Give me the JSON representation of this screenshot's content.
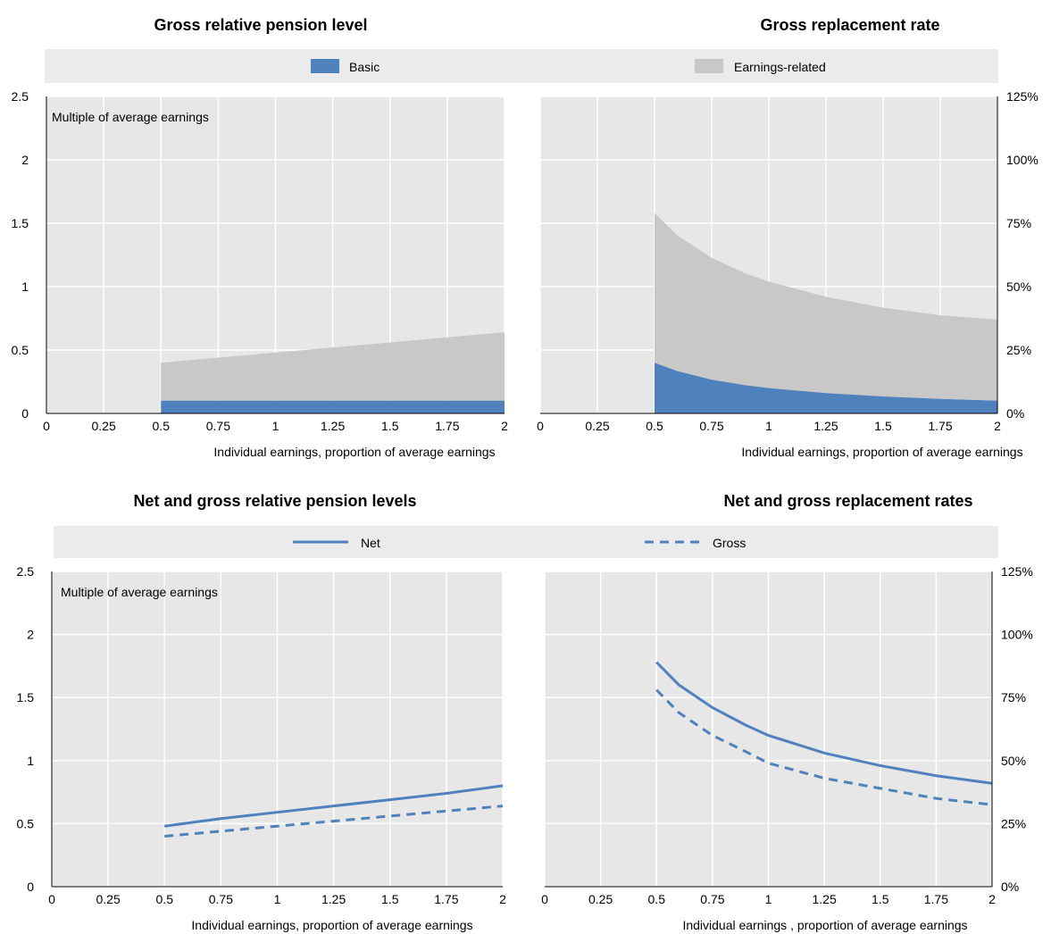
{
  "titles": {
    "top_left": "Gross relative pension level",
    "top_right": "Gross replacement rate",
    "bottom_left": "Net and gross relative pension levels",
    "bottom_right": "Net and gross replacement rates"
  },
  "legends": {
    "top": [
      {
        "label": "Basic",
        "color": "#4f81bd",
        "kind": "box"
      },
      {
        "label": "Earnings-related",
        "color": "#c8c8c8",
        "kind": "box"
      }
    ],
    "bottom": [
      {
        "label": "Net",
        "color": "#4f81bd",
        "kind": "solid"
      },
      {
        "label": "Gross",
        "color": "#4f81bd",
        "kind": "dashed"
      }
    ]
  },
  "colors": {
    "plot_bg": "#e7e7e7",
    "legend_bg": "#ebebeb",
    "grid": "#ffffff",
    "basic": "#4f81bd",
    "earnings_related": "#c8c8c8",
    "line": "#4f81bd"
  },
  "chart_data": [
    {
      "id": "top_left",
      "type": "area",
      "title": "Gross relative pension level",
      "annotation": "Multiple of average earnings",
      "xlabel": "Individual earnings, proportion of average earnings",
      "x_ticks": [
        "0",
        "0.25",
        "0.5",
        "0.75",
        "1",
        "1.25",
        "1.5",
        "1.75",
        "2"
      ],
      "y_ticks": [
        "0",
        "0.5",
        "1",
        "1.5",
        "2",
        "2.5"
      ],
      "xlim": [
        0,
        2
      ],
      "ylim": [
        0,
        2.5
      ],
      "grid": true,
      "x": [
        0.5,
        0.75,
        1,
        1.25,
        1.5,
        1.75,
        2
      ],
      "series": [
        {
          "name": "Basic",
          "values": [
            0.1,
            0.1,
            0.1,
            0.1,
            0.1,
            0.1,
            0.1
          ]
        },
        {
          "name": "Earnings-related",
          "values": [
            0.3,
            0.34,
            0.38,
            0.42,
            0.46,
            0.5,
            0.54
          ]
        }
      ]
    },
    {
      "id": "top_right",
      "type": "area",
      "title": "Gross replacement rate",
      "xlabel": "Individual earnings, proportion of average earnings",
      "x_ticks": [
        "0",
        "0.25",
        "0.5",
        "0.75",
        "1",
        "1.25",
        "1.5",
        "1.75",
        "2"
      ],
      "y_ticks": [
        "0%",
        "25%",
        "50%",
        "75%",
        "100%",
        "125%"
      ],
      "xlim": [
        0,
        2
      ],
      "ylim": [
        0,
        125
      ],
      "grid": true,
      "x": [
        0.5,
        0.6,
        0.75,
        0.9,
        1,
        1.25,
        1.5,
        1.75,
        2
      ],
      "series": [
        {
          "name": "Basic",
          "values": [
            20,
            16.7,
            13.3,
            11.1,
            10,
            8,
            6.7,
            5.7,
            5
          ]
        },
        {
          "name": "Earnings-related",
          "values": [
            59,
            53.5,
            48,
            44,
            42,
            38,
            35,
            33,
            32
          ]
        }
      ]
    },
    {
      "id": "bottom_left",
      "type": "line",
      "title": "Net and gross relative pension levels",
      "annotation": "Multiple of average earnings",
      "xlabel": "Individual earnings, proportion of average earnings",
      "x_ticks": [
        "0",
        "0.25",
        "0.5",
        "0.75",
        "1",
        "1.25",
        "1.5",
        "1.75",
        "2"
      ],
      "y_ticks": [
        "0",
        "0.5",
        "1",
        "1.5",
        "2",
        "2.5"
      ],
      "xlim": [
        0,
        2
      ],
      "ylim": [
        0,
        2.5
      ],
      "grid": true,
      "x": [
        0.5,
        0.75,
        1,
        1.25,
        1.5,
        1.75,
        2
      ],
      "series": [
        {
          "name": "Net",
          "values": [
            0.48,
            0.54,
            0.59,
            0.64,
            0.69,
            0.74,
            0.8
          ]
        },
        {
          "name": "Gross",
          "values": [
            0.4,
            0.44,
            0.48,
            0.52,
            0.56,
            0.6,
            0.64
          ]
        }
      ]
    },
    {
      "id": "bottom_right",
      "type": "line",
      "title": "Net and gross replacement rates",
      "xlabel": "Individual earnings , proportion of average earnings",
      "x_ticks": [
        "0",
        "0.25",
        "0.5",
        "0.75",
        "1",
        "1.25",
        "1.5",
        "1.75",
        "2"
      ],
      "y_ticks": [
        "0%",
        "25%",
        "50%",
        "75%",
        "100%",
        "125%"
      ],
      "xlim": [
        0,
        2
      ],
      "ylim": [
        0,
        125
      ],
      "grid": true,
      "x": [
        0.5,
        0.6,
        0.75,
        0.9,
        1,
        1.25,
        1.5,
        1.75,
        2
      ],
      "series": [
        {
          "name": "Net",
          "values": [
            89,
            80,
            71,
            64,
            60,
            53,
            48,
            44,
            41
          ]
        },
        {
          "name": "Gross",
          "values": [
            78,
            69,
            60,
            53.5,
            49,
            43,
            39,
            35,
            32.5
          ]
        }
      ]
    }
  ]
}
